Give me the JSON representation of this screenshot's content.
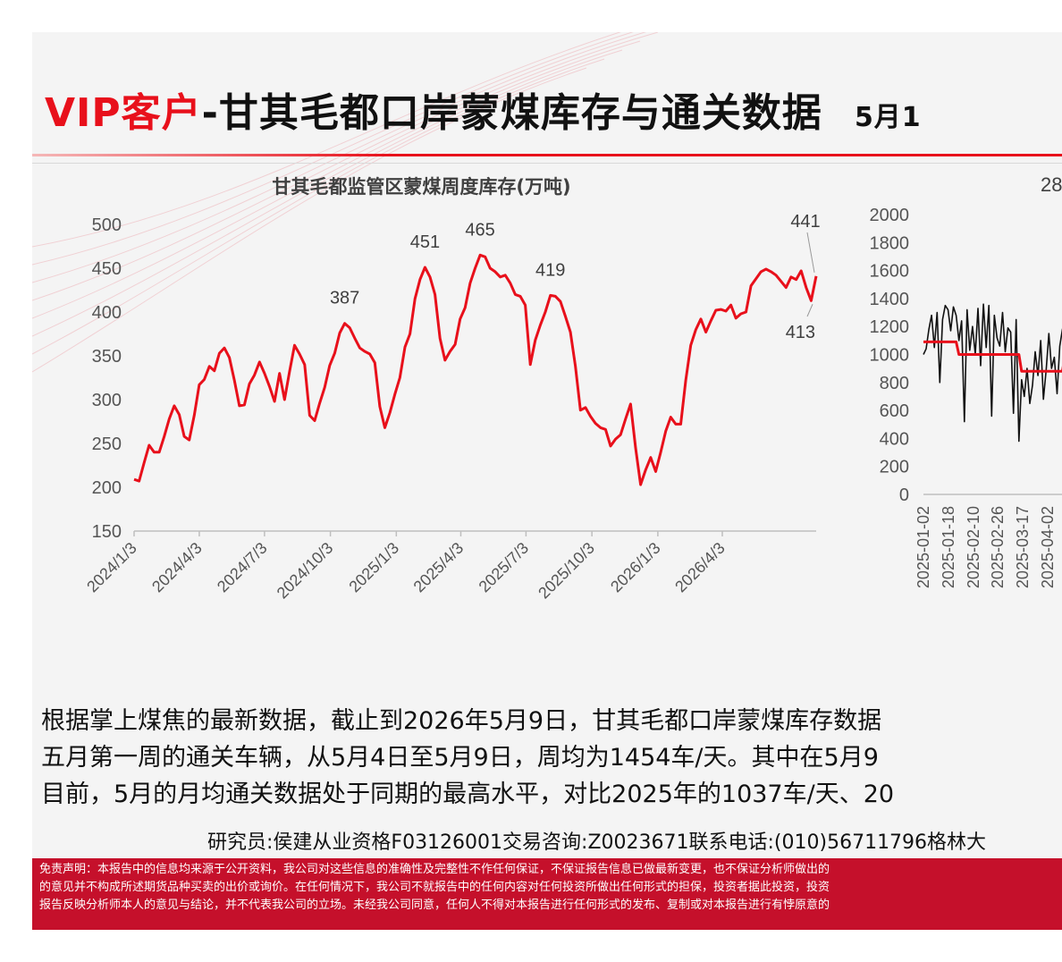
{
  "title": {
    "vip": "VIP客户",
    "main": "-甘其毛都口岸蒙煤库存与通关数据",
    "date": "5月1"
  },
  "colors": {
    "accent": "#e8101b",
    "footer": "#c5102b",
    "series_line": "#e8101b",
    "secondary_line": "#111111"
  },
  "chart_data": [
    {
      "type": "line",
      "title": "甘其毛都监管区蒙煤周度库存(万吨)",
      "xlabel": "",
      "ylabel": "",
      "x_ticks": [
        "2024/1/3",
        "2024/4/3",
        "2024/7/3",
        "2024/10/3",
        "2025/1/3",
        "2025/4/3",
        "2025/7/3",
        "2025/10/3",
        "2026/1/3",
        "2026/4/3"
      ],
      "ylim": [
        150,
        500
      ],
      "y_ticks": [
        150,
        200,
        250,
        300,
        350,
        400,
        450,
        500
      ],
      "grid": false,
      "series": [
        {
          "values": [
            [
              "2024-01-03",
              209
            ],
            [
              "2024-01-10",
              207
            ],
            [
              "2024-01-17",
              228
            ],
            [
              "2024-01-24",
              248
            ],
            [
              "2024-01-31",
              240
            ],
            [
              "2024-02-07",
              240
            ],
            [
              "2024-02-14",
              258
            ],
            [
              "2024-02-21",
              278
            ],
            [
              "2024-02-28",
              293
            ],
            [
              "2024-03-06",
              283
            ],
            [
              "2024-03-13",
              258
            ],
            [
              "2024-03-20",
              254
            ],
            [
              "2024-03-27",
              282
            ],
            [
              "2024-04-03",
              317
            ],
            [
              "2024-04-10",
              323
            ],
            [
              "2024-04-17",
              338
            ],
            [
              "2024-04-24",
              333
            ],
            [
              "2024-05-01",
              353
            ],
            [
              "2024-05-08",
              359
            ],
            [
              "2024-05-15",
              348
            ],
            [
              "2024-05-22",
              322
            ],
            [
              "2024-05-29",
              293
            ],
            [
              "2024-06-05",
              294
            ],
            [
              "2024-06-12",
              318
            ],
            [
              "2024-06-19",
              328
            ],
            [
              "2024-06-26",
              343
            ],
            [
              "2024-07-03",
              330
            ],
            [
              "2024-07-10",
              315
            ],
            [
              "2024-07-17",
              298
            ],
            [
              "2024-07-24",
              330
            ],
            [
              "2024-07-31",
              300
            ],
            [
              "2024-08-07",
              332
            ],
            [
              "2024-08-14",
              362
            ],
            [
              "2024-08-21",
              352
            ],
            [
              "2024-08-28",
              340
            ],
            [
              "2024-09-04",
              282
            ],
            [
              "2024-09-11",
              276
            ],
            [
              "2024-09-18",
              296
            ],
            [
              "2024-09-25",
              314
            ],
            [
              "2024-10-02",
              339
            ],
            [
              "2024-10-09",
              353
            ],
            [
              "2024-10-16",
              376
            ],
            [
              "2024-10-23",
              387
            ],
            [
              "2024-10-30",
              382
            ],
            [
              "2024-11-06",
              370
            ],
            [
              "2024-11-13",
              359
            ],
            [
              "2024-11-20",
              355
            ],
            [
              "2024-11-27",
              352
            ],
            [
              "2024-12-04",
              342
            ],
            [
              "2024-12-11",
              292
            ],
            [
              "2024-12-18",
              268
            ],
            [
              "2024-12-25",
              285
            ],
            [
              "2025-01-01",
              306
            ],
            [
              "2025-01-08",
              325
            ],
            [
              "2025-01-15",
              360
            ],
            [
              "2025-01-22",
              375
            ],
            [
              "2025-01-29",
              415
            ],
            [
              "2025-02-05",
              437
            ],
            [
              "2025-02-12",
              451
            ],
            [
              "2025-02-19",
              440
            ],
            [
              "2025-02-26",
              420
            ],
            [
              "2025-03-05",
              370
            ],
            [
              "2025-03-12",
              345
            ],
            [
              "2025-03-19",
              355
            ],
            [
              "2025-03-26",
              363
            ],
            [
              "2025-04-02",
              392
            ],
            [
              "2025-04-09",
              405
            ],
            [
              "2025-04-16",
              433
            ],
            [
              "2025-04-23",
              450
            ],
            [
              "2025-04-30",
              465
            ],
            [
              "2025-05-07",
              463
            ],
            [
              "2025-05-14",
              450
            ],
            [
              "2025-05-21",
              446
            ],
            [
              "2025-05-28",
              440
            ],
            [
              "2025-06-04",
              442
            ],
            [
              "2025-06-11",
              433
            ],
            [
              "2025-06-18",
              420
            ],
            [
              "2025-06-25",
              418
            ],
            [
              "2025-07-02",
              408
            ],
            [
              "2025-07-09",
              340
            ],
            [
              "2025-07-16",
              368
            ],
            [
              "2025-07-23",
              385
            ],
            [
              "2025-07-30",
              400
            ],
            [
              "2025-08-06",
              419
            ],
            [
              "2025-08-13",
              418
            ],
            [
              "2025-08-20",
              412
            ],
            [
              "2025-08-27",
              395
            ],
            [
              "2025-09-03",
              377
            ],
            [
              "2025-09-10",
              338
            ],
            [
              "2025-09-17",
              288
            ],
            [
              "2025-09-24",
              291
            ],
            [
              "2025-10-01",
              281
            ],
            [
              "2025-10-08",
              273
            ],
            [
              "2025-10-15",
              268
            ],
            [
              "2025-10-22",
              266
            ],
            [
              "2025-10-29",
              247
            ],
            [
              "2025-11-05",
              255
            ],
            [
              "2025-11-12",
              260
            ],
            [
              "2025-11-19",
              278
            ],
            [
              "2025-11-26",
              295
            ],
            [
              "2025-12-03",
              245
            ],
            [
              "2025-12-10",
              203
            ],
            [
              "2025-12-17",
              220
            ],
            [
              "2025-12-24",
              234
            ],
            [
              "2025-12-31",
              218
            ],
            [
              "2026-01-07",
              240
            ],
            [
              "2026-01-14",
              264
            ],
            [
              "2026-01-21",
              280
            ],
            [
              "2026-01-28",
              272
            ],
            [
              "2026-02-04",
              272
            ],
            [
              "2026-02-11",
              322
            ],
            [
              "2026-02-18",
              362
            ],
            [
              "2026-02-25",
              380
            ],
            [
              "2026-03-04",
              392
            ],
            [
              "2026-03-11",
              377
            ],
            [
              "2026-03-18",
              390
            ],
            [
              "2026-03-25",
              402
            ],
            [
              "2026-04-01",
              403
            ],
            [
              "2026-04-08",
              401
            ],
            [
              "2026-04-15",
              408
            ],
            [
              "2026-04-22",
              393
            ],
            [
              "2026-04-29",
              398
            ],
            [
              "2026-05-06",
              400
            ],
            [
              "2026-05-13",
              430
            ],
            [
              "2026-05-20",
              438
            ],
            [
              "2026-05-27",
              446
            ],
            [
              "2026-06-03",
              449
            ],
            [
              "2026-06-10",
              446
            ],
            [
              "2026-06-17",
              442
            ],
            [
              "2026-06-24",
              435
            ],
            [
              "2026-07-01",
              428
            ],
            [
              "2026-07-08",
              440
            ],
            [
              "2026-07-15",
              437
            ],
            [
              "2026-07-22",
              447
            ],
            [
              "2026-07-29",
              428
            ],
            [
              "2026-08-05",
              413
            ],
            [
              "2026-08-12",
              441
            ]
          ]
        }
      ],
      "annotations": [
        {
          "text": "387",
          "x": "2024-10-23",
          "y": 387
        },
        {
          "text": "451",
          "x": "2025-02-12",
          "y": 451
        },
        {
          "text": "465",
          "x": "2025-04-30",
          "y": 465
        },
        {
          "text": "419",
          "x": "2025-08-06",
          "y": 419
        },
        {
          "text": "441",
          "x": "2026-08-12",
          "y": 441
        },
        {
          "text": "413",
          "x": "2026-08-05",
          "y": 413
        }
      ]
    },
    {
      "type": "line",
      "title": "28",
      "xlabel": "",
      "ylabel": "",
      "ylim": [
        0,
        2000
      ],
      "y_ticks": [
        0,
        200,
        400,
        600,
        800,
        1000,
        1200,
        1400,
        1600,
        1800,
        2000
      ],
      "x_ticks": [
        "2025-01-02",
        "2025-01-18",
        "2025-02-10",
        "2025-02-26",
        "2025-03-17",
        "2025-04-02"
      ],
      "grid": false,
      "series": [
        {
          "color": "#111111",
          "values": [
            1000,
            1040,
            1180,
            1280,
            1050,
            1300,
            800,
            1250,
            1350,
            1320,
            1170,
            1340,
            1280,
            1100,
            1240,
            520,
            1320,
            1030,
            1200,
            1000,
            1330,
            920,
            1360,
            1050,
            1350,
            560,
            1280,
            1120,
            1060,
            1300,
            1020,
            1190,
            1160,
            580,
            1250,
            380,
            820,
            700,
            900,
            650,
            780,
            1020,
            850,
            1100,
            680,
            890,
            1150,
            900,
            980,
            720,
            1060,
            1180,
            1250,
            920,
            1050,
            1270,
            1240,
            1320,
            1200,
            1620,
            1200,
            1110,
            920,
            830
          ]
        },
        {
          "color": "#e8101b",
          "values": [
            1090,
            1090,
            1090,
            1090,
            1090,
            1090,
            1090,
            1090,
            1090,
            1090,
            1090,
            1090,
            1090,
            1000,
            1000,
            1000,
            1000,
            1000,
            1000,
            1000,
            1000,
            1000,
            1000,
            1000,
            1000,
            1000,
            1000,
            1000,
            1000,
            1000,
            1000,
            1000,
            1000,
            1000,
            1000,
            1000,
            880,
            880,
            880,
            880,
            880,
            880,
            880,
            880,
            880,
            880,
            880,
            880,
            880,
            880,
            880,
            880,
            1000,
            1000,
            1000,
            1000,
            1000,
            1000,
            1000,
            1000,
            1000,
            1000,
            1000,
            1000
          ]
        }
      ]
    }
  ],
  "body_text": [
    "根据掌上煤焦的最新数据，截止到2026年5月9日，甘其毛都口岸蒙煤库存数据",
    "五月第一周的通关车辆，从5月4日至5月9日，周均为1454车/天。其中在5月9",
    "目前，5月的月均通关数据处于同期的最高水平，对比2025年的1037车/天、20"
  ],
  "researcher": "研究员:侯建从业资格F03126001交易咨询:Z0023671联系电话:(010)56711796格林大",
  "disclaimer": [
    "免责声明：本报告中的信息均来源于公开资料，我公司对这些信息的准确性及完整性不作任何保证，不保证报告信息已做最新变更，也不保证分析师做出的",
    "的意见并不构成所述期货品种买卖的出价或询价。在任何情况下，我公司不就报告中的任何内容对任何投资所做出任何形式的担保，投资者据此投资，投资",
    "报告反映分析师本人的意见与结论，并不代表我公司的立场。未经我公司同意，任何人不得对本报告进行任何形式的发布、复制或对本报告进行有悖原意的"
  ]
}
